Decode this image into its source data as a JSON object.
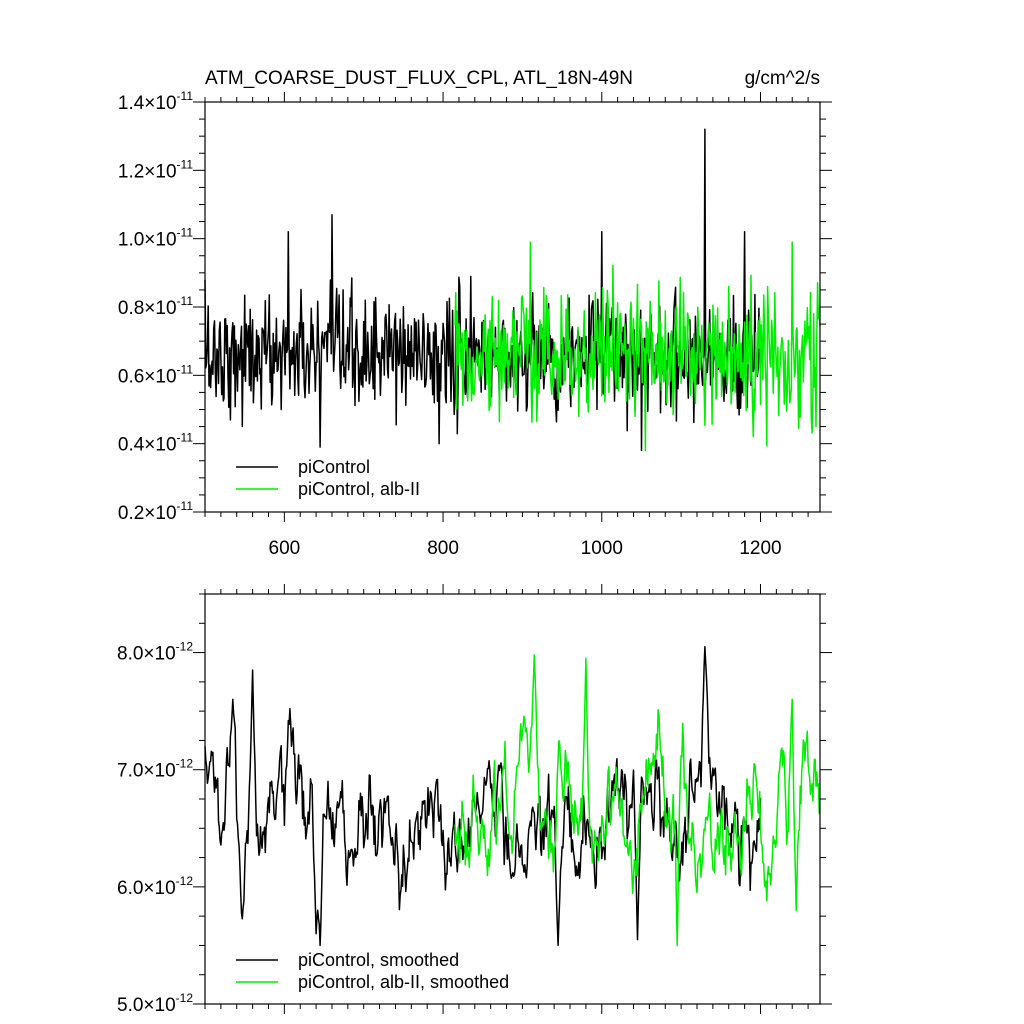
{
  "title": {
    "main": "ATM_COARSE_DUST_FLUX_CPL, ATL_18N-49N",
    "units": "g/cm^2/s"
  },
  "chart_data": [
    {
      "type": "line",
      "xlim": [
        500,
        1275
      ],
      "ylim": [
        2e-12,
        1.4e-11
      ],
      "x_ticks": [
        600,
        800,
        1000,
        1200
      ],
      "x_tick_labels": [
        "600",
        "800",
        "1000",
        "1200"
      ],
      "y_ticks": [
        2e-12,
        4e-12,
        6e-12,
        8e-12,
        1e-11,
        1.2e-11,
        1.4e-11
      ],
      "y_tick_labels": [
        {
          "mantissa": "0.2",
          "times": "×",
          "base": "10",
          "exp": "-11"
        },
        {
          "mantissa": "0.4",
          "times": "×",
          "base": "10",
          "exp": "-11"
        },
        {
          "mantissa": "0.6",
          "times": "×",
          "base": "10",
          "exp": "-11"
        },
        {
          "mantissa": "0.8",
          "times": "×",
          "base": "10",
          "exp": "-11"
        },
        {
          "mantissa": "1.0",
          "times": "×",
          "base": "10",
          "exp": "-11"
        },
        {
          "mantissa": "1.2",
          "times": "×",
          "base": "10",
          "exp": "-11"
        },
        {
          "mantissa": "1.4",
          "times": "×",
          "base": "10",
          "exp": "-11"
        }
      ],
      "legend_position": "bottom-left",
      "series": [
        {
          "name": "piControl",
          "color": "#000000",
          "x_range": [
            500,
            1200
          ],
          "mean": 6.6e-12,
          "spread": 1.2e-12,
          "peaks": [
            [
              500,
              8.8e-12
            ],
            [
              605,
              1.02e-11
            ],
            [
              660,
              1.07e-11
            ],
            [
              645,
              3.9e-12
            ],
            [
              795,
              4e-12
            ],
            [
              1000,
              1.02e-11
            ],
            [
              1050,
              3.8e-12
            ],
            [
              1130,
              1.32e-11
            ],
            [
              1180,
              1.02e-11
            ]
          ]
        },
        {
          "name": "piControl, alb-II",
          "color": "#00ee00",
          "x_range": [
            815,
            1275
          ],
          "mean": 6.6e-12,
          "spread": 1.3e-12,
          "peaks": [
            [
              910,
              9.9e-12
            ],
            [
              1055,
              3.8e-12
            ],
            [
              1240,
              9.9e-12
            ],
            [
              1270,
              4.5e-12
            ]
          ]
        }
      ]
    },
    {
      "type": "line",
      "xlim": [
        500,
        1275
      ],
      "ylim": [
        5e-12,
        8.5e-12
      ],
      "x_ticks": [
        600,
        800,
        1000,
        1200
      ],
      "y_ticks": [
        5e-12,
        6e-12,
        7e-12,
        8e-12
      ],
      "y_tick_labels": [
        {
          "mantissa": "5.0",
          "times": "×",
          "base": "10",
          "exp": "-12"
        },
        {
          "mantissa": "6.0",
          "times": "×",
          "base": "10",
          "exp": "-12"
        },
        {
          "mantissa": "7.0",
          "times": "×",
          "base": "10",
          "exp": "-12"
        },
        {
          "mantissa": "8.0",
          "times": "×",
          "base": "10",
          "exp": "-12"
        }
      ],
      "legend_position": "bottom-left",
      "series": [
        {
          "name": "piControl, smoothed",
          "color": "#000000",
          "x_range": [
            500,
            1200
          ],
          "mean": 6.6e-12,
          "spread": 4.5e-13,
          "peaks": [
            [
              500,
              7.2e-12
            ],
            [
              535,
              7.6e-12
            ],
            [
              560,
              7.85e-12
            ],
            [
              640,
              5.6e-12
            ],
            [
              645,
              5.5e-12
            ],
            [
              945,
              5.5e-12
            ],
            [
              1045,
              5.55e-12
            ],
            [
              1130,
              8.05e-12
            ]
          ]
        },
        {
          "name": "piControl, alb-II, smoothed",
          "color": "#00ee00",
          "x_range": [
            815,
            1275
          ],
          "mean": 6.6e-12,
          "spread": 4.5e-13,
          "peaks": [
            [
              915,
              7.98e-12
            ],
            [
              980,
              7.95e-12
            ],
            [
              1095,
              5.5e-12
            ],
            [
              1240,
              7.6e-12
            ],
            [
              1245,
              5.8e-12
            ]
          ]
        }
      ]
    }
  ]
}
